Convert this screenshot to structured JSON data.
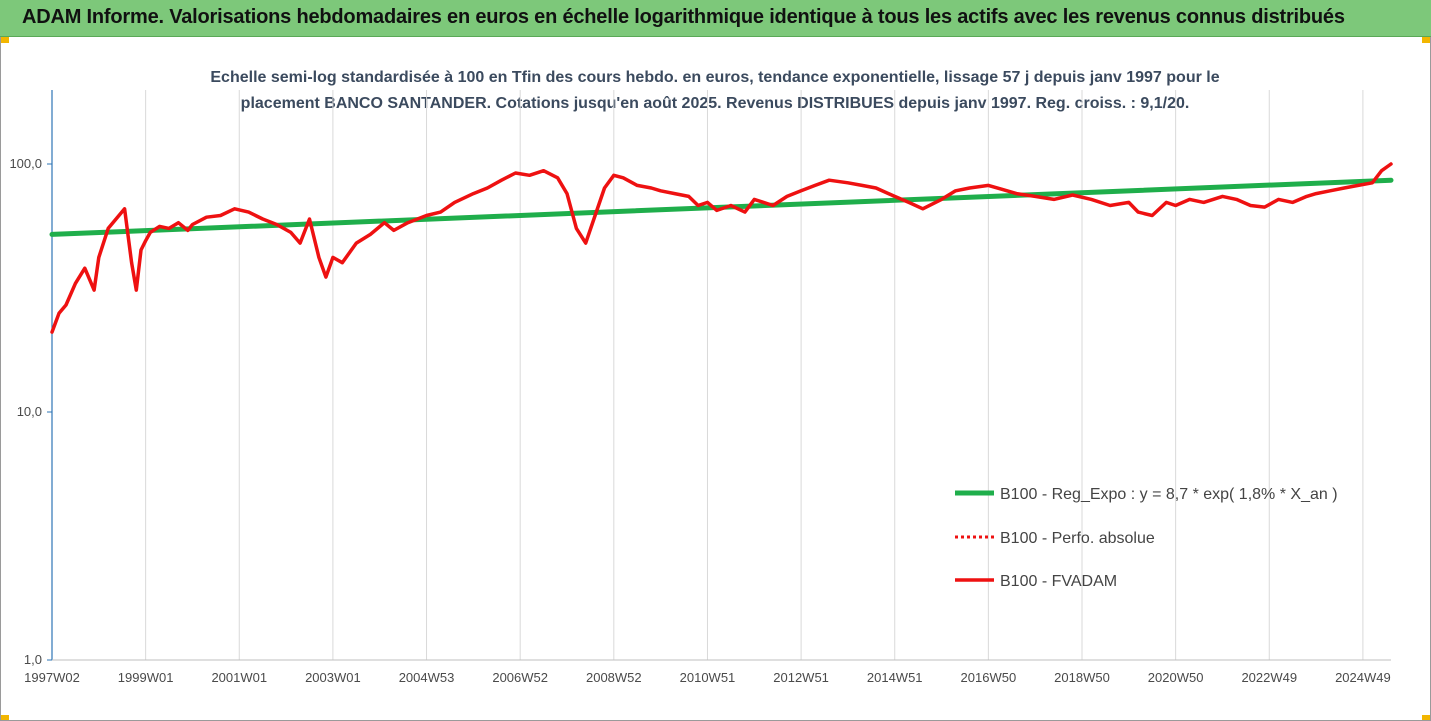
{
  "header": {
    "title": "ADAM Informe. Valorisations hebdomadaires en euros en échelle logarithmique identique à tous les actifs avec les revenus connus distribués"
  },
  "colors": {
    "banner": "#7dc87a",
    "trend": "#1fae4b",
    "fvadam": "#ee1111",
    "perf": "#ee1111",
    "axis": "#2e75b6",
    "grid": "#d9d9d9"
  },
  "chart_data": {
    "type": "line",
    "title": "Echelle semi-log standardisée à 100 en Tfin des cours hebdo. en euros, tendance exponentielle, lissage 57 j depuis janv 1997 pour le placement BANCO SANTANDER. Cotations jusqu'en août 2025. Revenus DISTRIBUES depuis janv 1997. Reg. croiss. : 9,1/20.",
    "title_lines": [
      "Echelle semi-log standardisée à 100 en Tfin des cours hebdo. en euros, tendance exponentielle, lissage 57 j depuis janv 1997 pour le",
      "placement BANCO SANTANDER. Cotations jusqu'en août 2025. Revenus DISTRIBUES depuis janv 1997. Reg. croiss. : 9,1/20."
    ],
    "y_scale": "log",
    "ylim": [
      1,
      200
    ],
    "y_ticks": [
      {
        "value": 1,
        "label": "1,0"
      },
      {
        "value": 10,
        "label": "10,0"
      },
      {
        "value": 100,
        "label": "100,0"
      }
    ],
    "xlim": [
      1997.0,
      2025.6
    ],
    "x_ticks": [
      {
        "value": 1997.0,
        "label": "1997W02"
      },
      {
        "value": 1999.0,
        "label": "1999W01"
      },
      {
        "value": 2001.0,
        "label": "2001W01"
      },
      {
        "value": 2003.0,
        "label": "2003W01"
      },
      {
        "value": 2005.0,
        "label": "2004W53"
      },
      {
        "value": 2007.0,
        "label": "2006W52"
      },
      {
        "value": 2009.0,
        "label": "2008W52"
      },
      {
        "value": 2011.0,
        "label": "2010W51"
      },
      {
        "value": 2013.0,
        "label": "2012W51"
      },
      {
        "value": 2015.0,
        "label": "2014W51"
      },
      {
        "value": 2017.0,
        "label": "2016W50"
      },
      {
        "value": 2019.0,
        "label": "2018W50"
      },
      {
        "value": 2021.0,
        "label": "2020W50"
      },
      {
        "value": 2023.0,
        "label": "2022W49"
      },
      {
        "value": 2025.0,
        "label": "2024W49"
      }
    ],
    "grid": "vertical",
    "legend_position": "bottom-right",
    "series": [
      {
        "name": "B100 - Reg_Expo : y = 8,7 * exp( 1,8% *  X_an )",
        "style": "solid-thick",
        "x": [
          1997.0,
          2025.6
        ],
        "y": [
          52.0,
          86.0
        ]
      },
      {
        "name": "B100 - Perfo. absolue",
        "style": "dotted",
        "x": [],
        "y": []
      },
      {
        "name": "B100 - FVADAM",
        "style": "solid",
        "x": [
          1997.0,
          1997.15,
          1997.3,
          1997.5,
          1997.7,
          1997.9,
          1998.0,
          1998.2,
          1998.4,
          1998.55,
          1998.7,
          1998.8,
          1998.9,
          1999.0,
          1999.1,
          1999.3,
          1999.5,
          1999.7,
          1999.9,
          2000.0,
          2000.3,
          2000.6,
          2000.9,
          2001.2,
          2001.5,
          2001.8,
          2002.1,
          2002.3,
          2002.5,
          2002.7,
          2002.85,
          2003.0,
          2003.2,
          2003.5,
          2003.8,
          2004.1,
          2004.3,
          2004.6,
          2005.0,
          2005.3,
          2005.6,
          2006.0,
          2006.3,
          2006.6,
          2006.9,
          2007.2,
          2007.5,
          2007.8,
          2008.0,
          2008.2,
          2008.4,
          2008.6,
          2008.8,
          2009.0,
          2009.2,
          2009.5,
          2009.8,
          2010.0,
          2010.3,
          2010.6,
          2010.8,
          2011.0,
          2011.2,
          2011.5,
          2011.8,
          2012.0,
          2012.2,
          2012.4,
          2012.7,
          2013.0,
          2013.3,
          2013.6,
          2014.0,
          2014.3,
          2014.6,
          2015.0,
          2015.3,
          2015.6,
          2016.0,
          2016.3,
          2016.6,
          2017.0,
          2017.3,
          2017.6,
          2018.0,
          2018.4,
          2018.8,
          2019.2,
          2019.6,
          2020.0,
          2020.2,
          2020.5,
          2020.8,
          2021.0,
          2021.3,
          2021.6,
          2022.0,
          2022.3,
          2022.6,
          2022.9,
          2023.2,
          2023.5,
          2023.8,
          2024.0,
          2024.3,
          2024.6,
          2024.9,
          2025.2,
          2025.4,
          2025.6
        ],
        "y": [
          21,
          25,
          27,
          33,
          38,
          31,
          42,
          55,
          61,
          66,
          40,
          31,
          45,
          49,
          53,
          56,
          55,
          58,
          54,
          57,
          61,
          62,
          66,
          64,
          60,
          57,
          53,
          48,
          60,
          42,
          35,
          42,
          40,
          48,
          52,
          58,
          54,
          58,
          62,
          64,
          70,
          76,
          80,
          86,
          92,
          90,
          94,
          88,
          76,
          55,
          48,
          62,
          80,
          90,
          88,
          82,
          80,
          78,
          76,
          74,
          68,
          70,
          65,
          68,
          64,
          72,
          70,
          68,
          74,
          78,
          82,
          86,
          84,
          82,
          80,
          74,
          70,
          66,
          72,
          78,
          80,
          82,
          79,
          76,
          74,
          72,
          75,
          72,
          68,
          70,
          64,
          62,
          70,
          68,
          72,
          70,
          74,
          72,
          68,
          67,
          72,
          70,
          74,
          76,
          78,
          80,
          82,
          84,
          94,
          100
        ]
      }
    ]
  }
}
